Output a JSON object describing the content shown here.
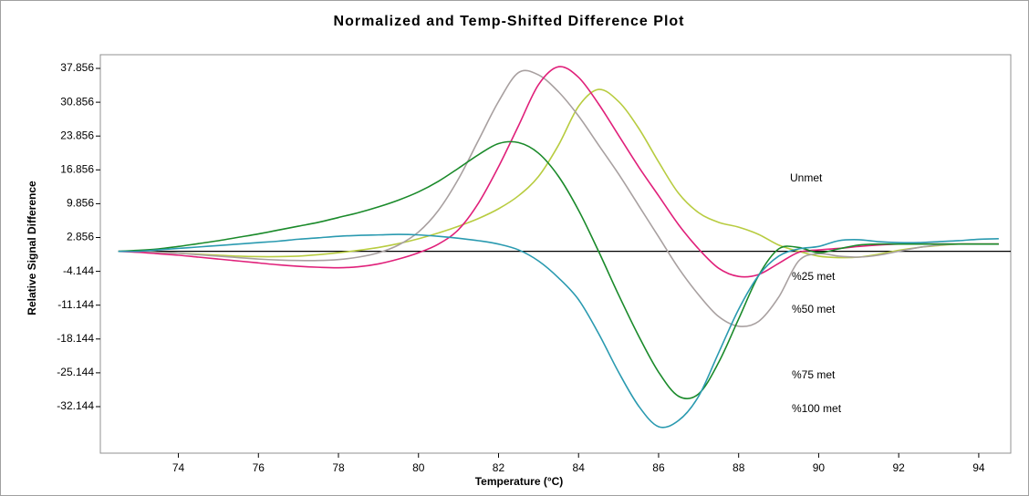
{
  "chart_data": {
    "type": "line",
    "title": "Normalized and Temp-Shifted Difference Plot",
    "x_label": "Temperature (°C)",
    "y_label": "Relative Signal Difference",
    "xlim": [
      72.05,
      94.8
    ],
    "ylim": [
      -41.77,
      40.69
    ],
    "xticks": [
      74,
      76,
      78,
      80,
      82,
      84,
      86,
      88,
      90,
      92,
      94
    ],
    "yticks": [
      37.856,
      30.856,
      23.856,
      16.856,
      9.856,
      2.856,
      -4.144,
      -11.144,
      -18.144,
      -25.144,
      -32.144
    ],
    "zero_line": true,
    "annotations": [
      "Unmet",
      "%25 met",
      "%50 met",
      "%75 met",
      "%100 met"
    ],
    "x": [
      72.5,
      73,
      73.5,
      74,
      74.5,
      75,
      75.5,
      76,
      76.5,
      77,
      77.5,
      78,
      78.5,
      79,
      79.5,
      80,
      80.5,
      81,
      81.5,
      82,
      82.5,
      83,
      83.5,
      84,
      84.5,
      85,
      85.5,
      86,
      86.5,
      87,
      87.5,
      88,
      88.5,
      89,
      89.5,
      90,
      90.5,
      91,
      91.5,
      92,
      92.5,
      93,
      93.5,
      94,
      94.5
    ],
    "series": [
      {
        "color": "#b8cc40",
        "values": [
          0,
          0,
          -0.2,
          -0.4,
          -0.6,
          -0.8,
          -1,
          -1.1,
          -1.1,
          -1,
          -0.7,
          -0.3,
          0.2,
          0.8,
          1.6,
          2.6,
          3.8,
          5.2,
          6.8,
          8.8,
          11.5,
          15.5,
          22,
          30,
          33.5,
          31,
          25.5,
          18.5,
          12,
          8,
          6,
          5,
          3.5,
          1.3,
          0,
          -1,
          -1.3,
          -1.2,
          -0.6,
          0.2,
          0.8,
          1.2,
          1.5,
          1.5,
          1.5
        ]
      },
      {
        "color": "#a8a0a0",
        "values": [
          0,
          0,
          -0.2,
          -0.4,
          -0.7,
          -1,
          -1.3,
          -1.6,
          -1.8,
          -1.9,
          -1.9,
          -1.7,
          -1.2,
          -0.3,
          1.3,
          4,
          8.5,
          15,
          23,
          31,
          37,
          36.5,
          33,
          28,
          22,
          16,
          9.5,
          3,
          -3.5,
          -9,
          -13.5,
          -15.5,
          -14.5,
          -9.5,
          -2,
          -0.5,
          -1,
          -1.2,
          -0.8,
          0,
          0.8,
          1.3,
          1.5,
          1.5,
          1.5
        ]
      },
      {
        "color": "#e0207a",
        "values": [
          0,
          -0.2,
          -0.5,
          -0.8,
          -1.2,
          -1.6,
          -2,
          -2.4,
          -2.8,
          -3.1,
          -3.3,
          -3.4,
          -3.2,
          -2.6,
          -1.6,
          -0.3,
          1.5,
          4.5,
          10,
          17.5,
          26,
          34.5,
          38.2,
          36,
          30.5,
          24,
          17.5,
          11.5,
          5.5,
          0.5,
          -3.5,
          -5.2,
          -4.8,
          -2.5,
          -0.2,
          0.3,
          0.6,
          1,
          1.3,
          1.5,
          1.5,
          1.5,
          1.5,
          1.5,
          1.5
        ]
      },
      {
        "color": "#1a8a2a",
        "values": [
          0,
          0.2,
          0.5,
          1,
          1.6,
          2.2,
          2.9,
          3.6,
          4.4,
          5.2,
          6,
          7,
          8,
          9.2,
          10.6,
          12.3,
          14.5,
          17.2,
          20,
          22.3,
          22.5,
          20.3,
          15.5,
          8.5,
          0,
          -9,
          -17.5,
          -25,
          -30,
          -29.5,
          -23,
          -14,
          -5,
          0.5,
          0.8,
          -0.3,
          0.5,
          1.3,
          1.5,
          1.5,
          1.5,
          1.5,
          1.5,
          1.5,
          1.5
        ]
      },
      {
        "color": "#2a9ab0",
        "values": [
          0,
          0,
          0.3,
          0.6,
          0.9,
          1.2,
          1.5,
          1.8,
          2.1,
          2.5,
          2.8,
          3.1,
          3.3,
          3.4,
          3.5,
          3.4,
          3.1,
          2.7,
          2.2,
          1.5,
          0.3,
          -2,
          -5.5,
          -10,
          -17,
          -25,
          -32,
          -36.3,
          -35,
          -30,
          -21,
          -12,
          -5,
          -1,
          0.5,
          1,
          2.2,
          2.4,
          2,
          1.8,
          1.8,
          2,
          2.2,
          2.5,
          2.6
        ]
      }
    ]
  }
}
